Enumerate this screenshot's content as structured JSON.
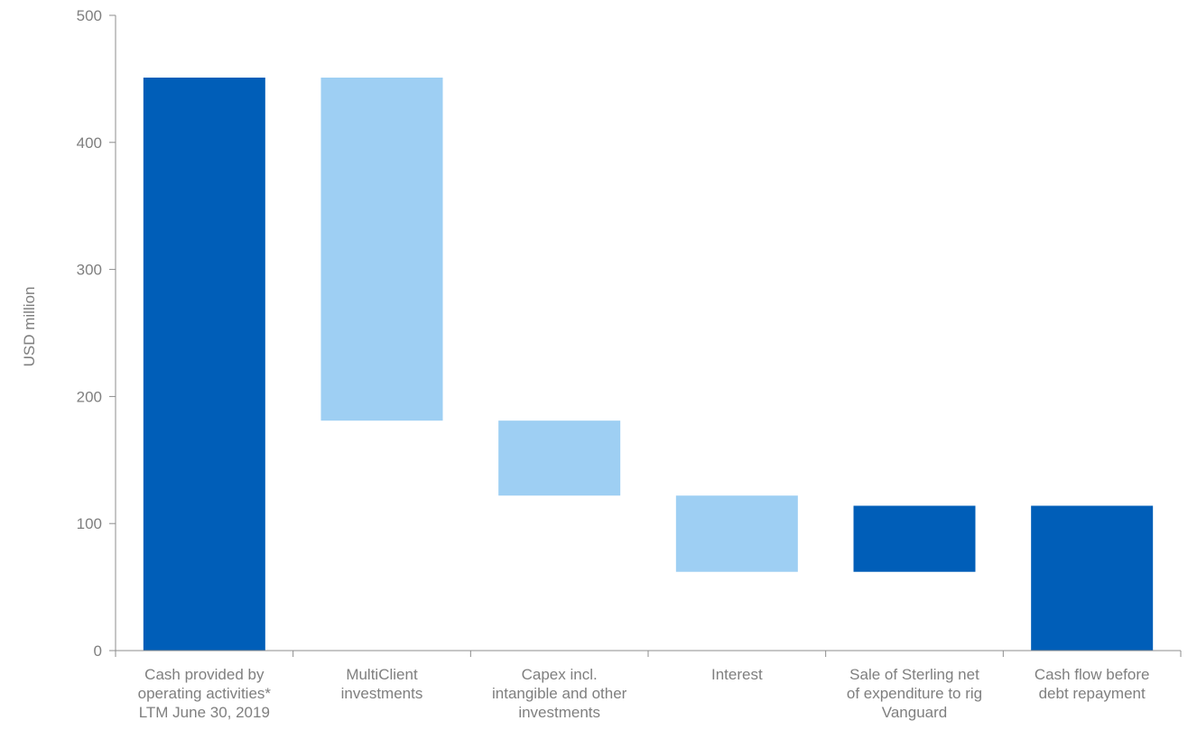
{
  "chart_data": {
    "type": "bar",
    "subtype": "waterfall",
    "title": "",
    "xlabel": "",
    "ylabel": "USD million",
    "ylim": [
      0,
      500
    ],
    "yticks": [
      0,
      100,
      200,
      300,
      400,
      500
    ],
    "grid": false,
    "legend": "none",
    "categories": [
      [
        "Cash provided by",
        "operating activities*",
        "LTM June 30, 2019"
      ],
      [
        "MultiClient",
        "investments"
      ],
      [
        "Capex incl.",
        "intangible and other",
        "investments"
      ],
      [
        "Interest"
      ],
      [
        "Sale of Sterling net",
        "of expenditure to rig",
        "Vanguard"
      ],
      [
        "Cash flow before",
        "debt repayment"
      ]
    ],
    "bars": [
      {
        "low": 0,
        "high": 451,
        "kind": "total"
      },
      {
        "low": 181,
        "high": 451,
        "kind": "decrease"
      },
      {
        "low": 122,
        "high": 181,
        "kind": "decrease"
      },
      {
        "low": 62,
        "high": 122,
        "kind": "decrease"
      },
      {
        "low": 62,
        "high": 114,
        "kind": "increase"
      },
      {
        "low": 0,
        "high": 114,
        "kind": "total"
      }
    ],
    "colors": {
      "total": "#005eb8",
      "increase": "#005eb8",
      "decrease": "#9ecff3",
      "axis": "#8c8c8c",
      "text": "#7f7f7f"
    }
  }
}
